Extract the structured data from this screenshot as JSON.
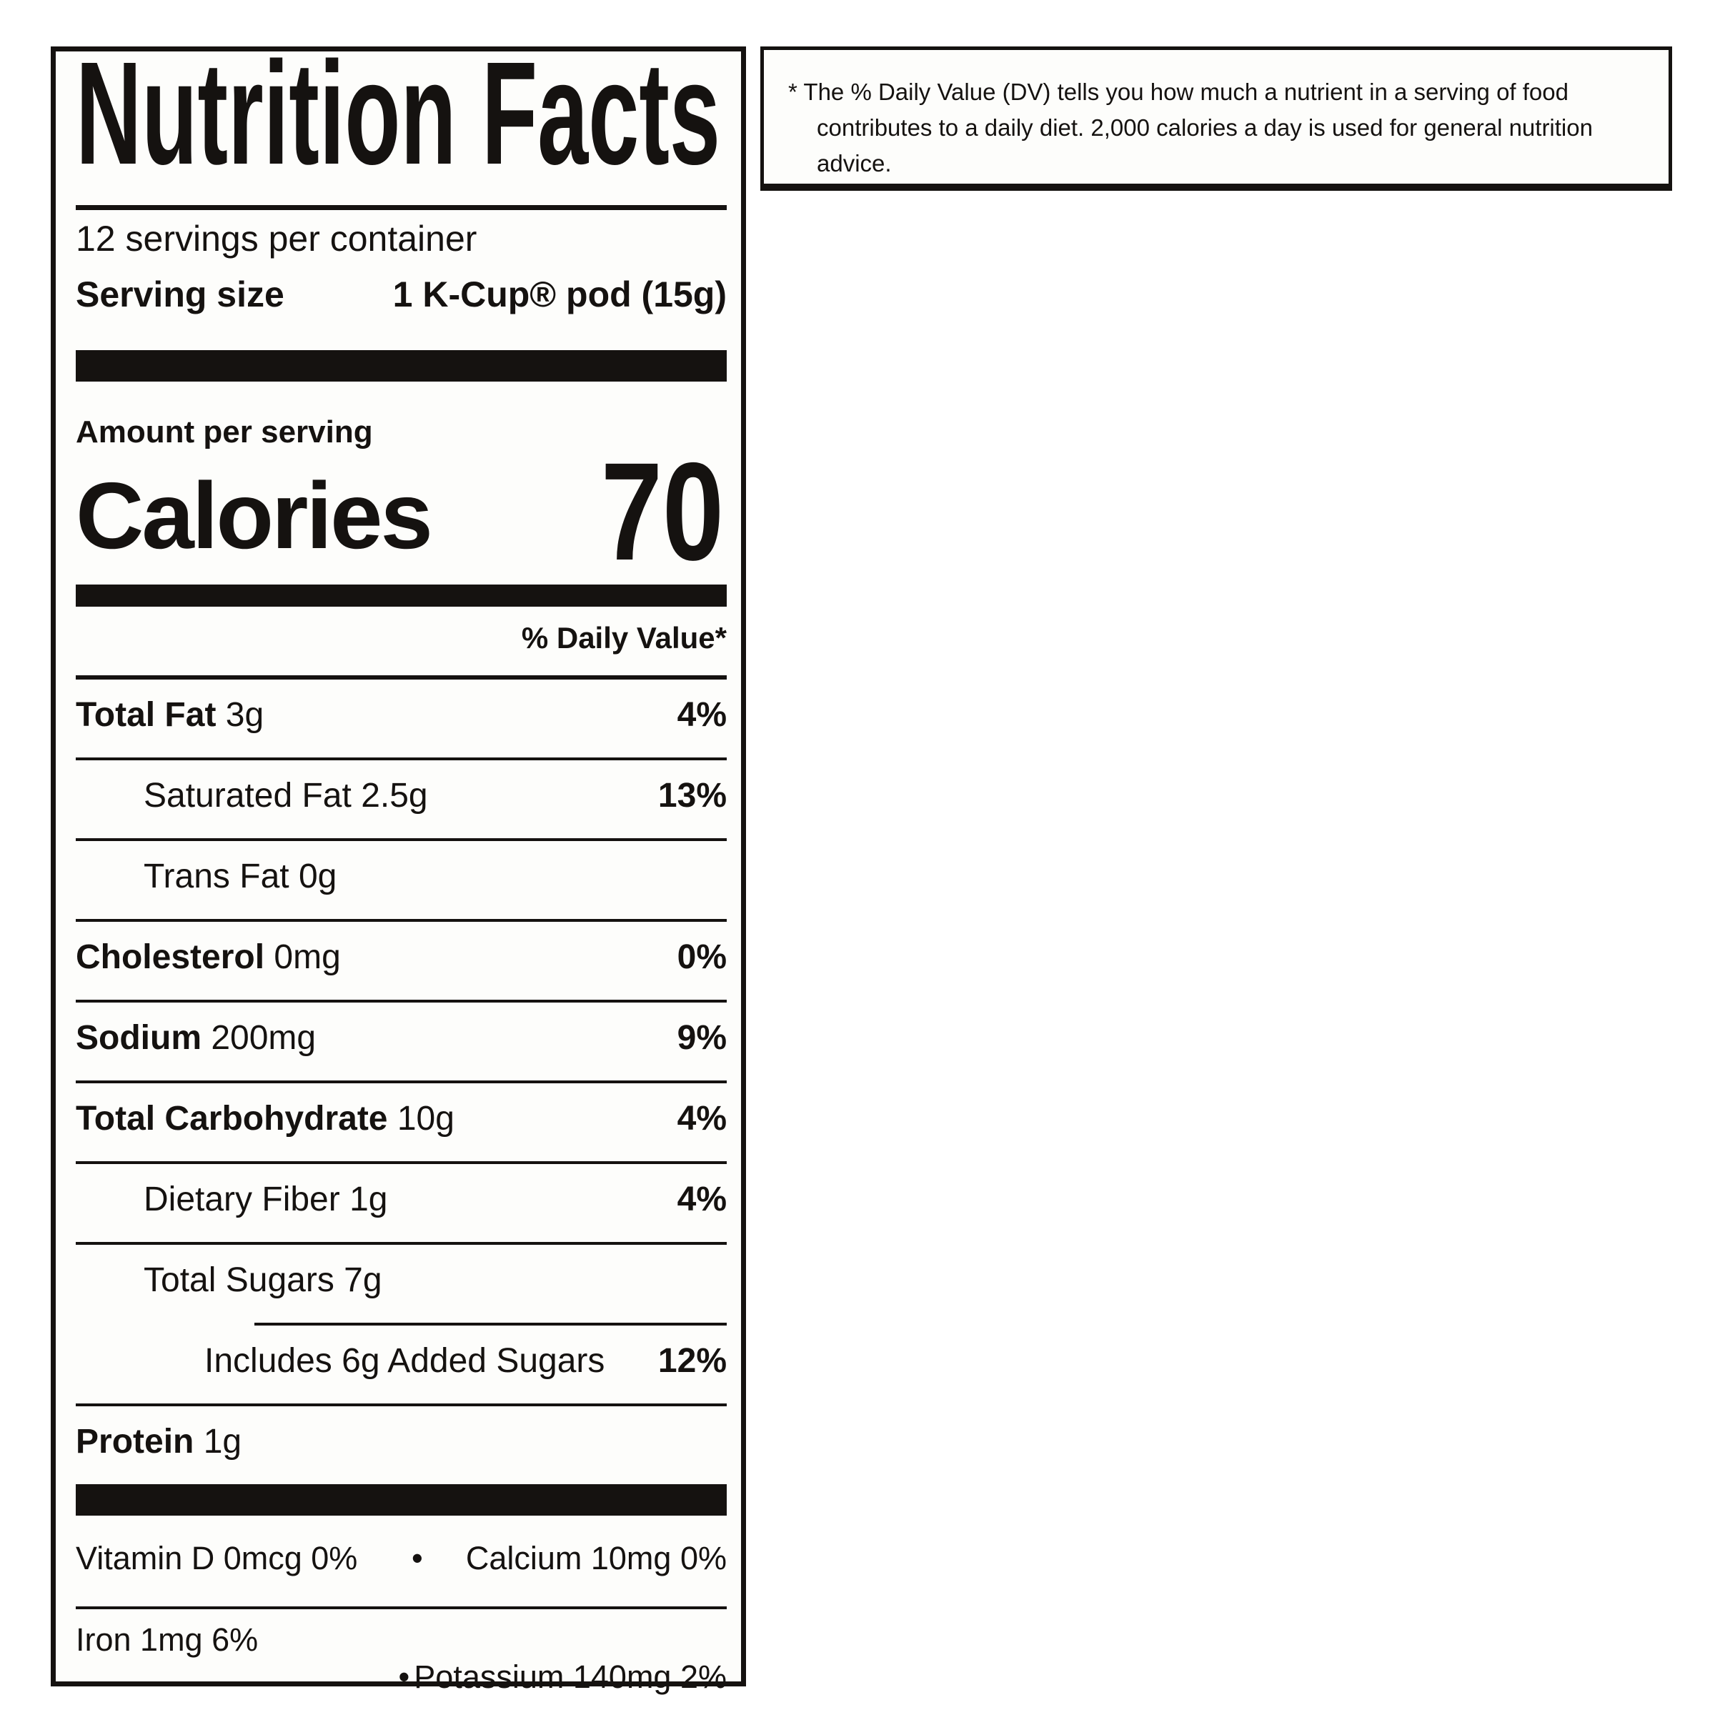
{
  "colors": {
    "ink": "#151210",
    "paper": "#fdfdfb",
    "background": "#ffffff"
  },
  "label": {
    "title": "Nutrition Facts",
    "servings_per_container": "12 servings per container",
    "serving_size_label": "Serving size",
    "serving_size_value": "1 K-Cup® pod (15g)",
    "amount_per_serving": "Amount per serving",
    "calories_label": "Calories",
    "calories_value": "70",
    "daily_value_header": "% Daily Value*",
    "rows": [
      {
        "name": "Total Fat",
        "amount": "3g",
        "dv": "4%"
      },
      {
        "name": "Saturated Fat",
        "amount": "2.5g",
        "dv": "13%"
      },
      {
        "name": "Trans Fat",
        "amount": "0g",
        "dv": ""
      },
      {
        "name": "Cholesterol",
        "amount": "0mg",
        "dv": "0%"
      },
      {
        "name": "Sodium",
        "amount": "200mg",
        "dv": "9%"
      },
      {
        "name": "Total Carbohydrate",
        "amount": "10g",
        "dv": "4%"
      },
      {
        "name": "Dietary Fiber",
        "amount": "1g",
        "dv": "4%"
      },
      {
        "name": "Total Sugars",
        "amount": "7g",
        "dv": ""
      },
      {
        "name": "Includes 6g Added Sugars",
        "amount": "",
        "dv": "12%"
      },
      {
        "name": "Protein",
        "amount": "1g",
        "dv": ""
      }
    ],
    "micronutrients": [
      {
        "left": "Vitamin D 0mcg 0%",
        "bullet": "•",
        "right": "Calcium 10mg 0%"
      },
      {
        "left": "Iron 1mg 6%",
        "bullet": "•",
        "right": "Potassium 140mg 2%"
      }
    ]
  },
  "footnote": {
    "line1": "* The % Daily Value (DV) tells you how much a nutrient in a serving of food",
    "line2": "contributes to a daily diet. 2,000 calories a day is used for general nutrition advice."
  }
}
